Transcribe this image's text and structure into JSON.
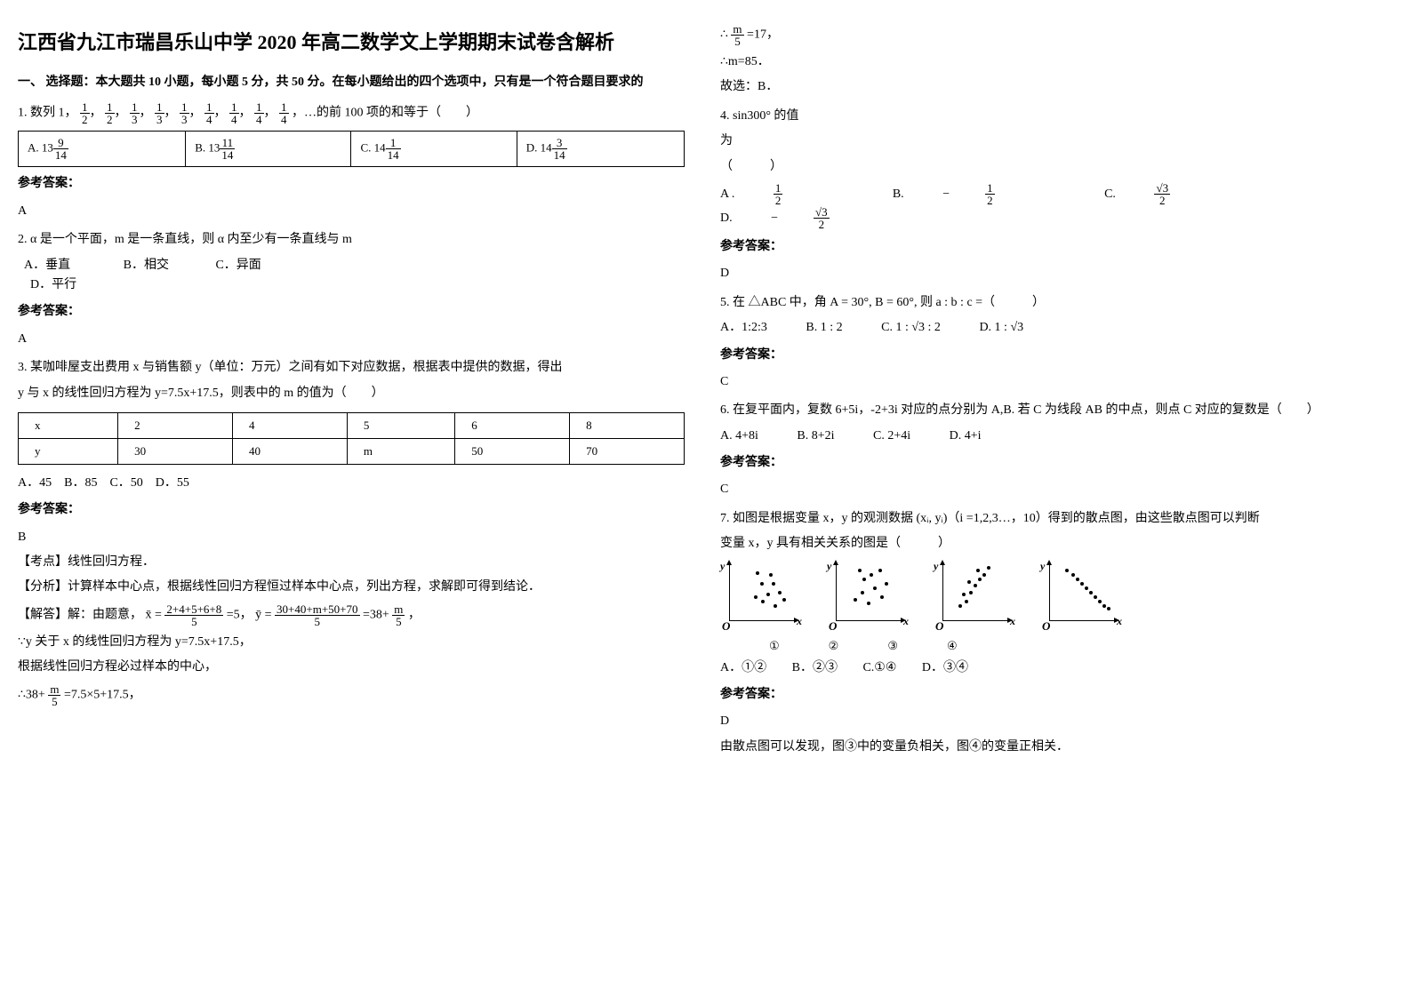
{
  "title": "江西省九江市瑞昌乐山中学 2020 年高二数学文上学期期末试卷含解析",
  "section1": "一、 选择题：本大题共 10 小题，每小题 5 分，共 50 分。在每小题给出的四个选项中，只有是一个符合题目要求的",
  "q1": {
    "stem": "1. 数列 1，",
    "tail": "，…的前 100 项的和等于（　　）",
    "seq": [
      "1",
      "2",
      "1",
      "2",
      "1",
      "3",
      "1",
      "3",
      "1",
      "3",
      "1",
      "4",
      "1",
      "4",
      "1",
      "4",
      "1",
      "4"
    ],
    "opts": {
      "A_pre": "A.",
      "A_int": "13",
      "A_num": "9",
      "A_den": "14",
      "B_pre": "B.",
      "B_int": "13",
      "B_num": "11",
      "B_den": "14",
      "C_pre": "C.",
      "C_int": "14",
      "C_num": "1",
      "C_den": "14",
      "D_pre": "D.",
      "D_int": "14",
      "D_num": "3",
      "D_den": "14"
    },
    "answer_label": "参考答案：",
    "answer": "A"
  },
  "q2": {
    "stem": "2. α 是一个平面，m 是一条直线，则 α 内至少有一条直线与 m",
    "optA": "A．垂直",
    "optB": "B．相交",
    "optC": "C．异面",
    "optD": "D．平行",
    "answer_label": "参考答案：",
    "answer": "A"
  },
  "q3": {
    "stem1": "3. 某咖啡屋支出费用 x 与销售额 y（单位：万元）之间有如下对应数据，根据表中提供的数据，得出",
    "stem2": "y 与 x 的线性回归方程为 y=7.5x+17.5，则表中的 m 的值为（　　）",
    "table": {
      "r1": [
        "x",
        "2",
        "4",
        "5",
        "6",
        "8"
      ],
      "r2": [
        "y",
        "30",
        "40",
        "m",
        "50",
        "70"
      ]
    },
    "opts": "A．45　B．85　C．50　D．55",
    "answer_label": "参考答案：",
    "answer": "B",
    "kaodian_lbl": "【考点】",
    "kaodian": "线性回归方程．",
    "fenxi_lbl": "【分析】",
    "fenxi": "计算样本中心点，根据线性回归方程恒过样本中心点，列出方程，求解即可得到结论．",
    "jieda_lbl": "【解答】",
    "jieda_pre": "解：由题意，",
    "xbar_eq": "x̄ =",
    "xbar_num": "2+4+5+6+8",
    "xbar_den": "5",
    "xbar_val": "=5，",
    "ybar_eq": "ȳ =",
    "ybar_num": "30+40+m+50+70",
    "ybar_den": "5",
    "ybar_val_pre": "=38+",
    "ybar_m_num": "m",
    "ybar_m_den": "5",
    "ybar_tail": "，",
    "line1": "∵y 关于 x 的线性回归方程为 y=7.5x+17.5，",
    "line2": "根据线性回归方程必过样本的中心，",
    "line3_pre": "∴38+",
    "line3_num": "m",
    "line3_den": "5",
    "line3_tail": "=7.5×5+17.5，"
  },
  "right": {
    "l1_pre": "∴",
    "l1_num": "m",
    "l1_den": "5",
    "l1_tail": "=17，",
    "l2": "∴m=85．",
    "l3": "故选：B．",
    "q4_stem1": "4. sin300° 的值",
    "q4_stem2": "为",
    "q4_paren": "（　　　）",
    "q4_A": "A .",
    "q4_A_num": "1",
    "q4_A_den": "2",
    "q4_B": "B.",
    "q4_B_neg": "−",
    "q4_B_num": "1",
    "q4_B_den": "2",
    "q4_C": "C.",
    "q4_C_num": "√3",
    "q4_C_den": "2",
    "q4_D": "D.",
    "q4_D_neg": "−",
    "q4_D_num": "√3",
    "q4_D_den": "2",
    "q4_answer_label": "参考答案：",
    "q4_answer": "D",
    "q5_stem": "5. 在 △ABC 中，角 A = 30°, B = 60°, 则 a : b : c =（　　　）",
    "q5_A": "A．1:2:3",
    "q5_B": "B. 1 : 2",
    "q5_C": "C. 1 : √3 : 2",
    "q5_D": "D. 1 : √3",
    "q5_answer_label": "参考答案：",
    "q5_answer": "C",
    "q6_stem": "6. 在复平面内，复数 6+5i，-2+3i 对应的点分别为 A,B. 若 C 为线段 AB 的中点，则点 C 对应的复数是（　　）",
    "q6_A": "A. 4+8i",
    "q6_B": "B. 8+2i",
    "q6_C": "C. 2+4i",
    "q6_D": "D. 4+i",
    "q6_answer_label": "参考答案：",
    "q6_answer": "C",
    "q7_stem1": "7. 如图是根据变量 x，y 的观测数据 (xᵢ, yᵢ)（i =1,2,3…，10）得到的散点图，由这些散点图可以判断",
    "q7_stem2": "变量 x，y 具有相关关系的图是（　　　）",
    "q7_labels": {
      "n1": "①",
      "n2": "②",
      "n3": "③",
      "n4": "④"
    },
    "q7_A": "A．①②",
    "q7_B": "B．②③",
    "q7_C": "C.①④",
    "q7_D": "D．③④",
    "q7_answer_label": "参考答案：",
    "q7_answer": "D",
    "q7_concl": "由散点图可以发现，图③中的变量负相关，图④的变量正相关．",
    "scatter": {
      "plot1": [
        [
          28,
          25
        ],
        [
          36,
          20
        ],
        [
          42,
          28
        ],
        [
          50,
          15
        ],
        [
          35,
          40
        ],
        [
          48,
          40
        ],
        [
          30,
          52
        ],
        [
          55,
          30
        ],
        [
          45,
          50
        ],
        [
          60,
          22
        ]
      ],
      "plot2": [
        [
          20,
          22
        ],
        [
          28,
          30
        ],
        [
          35,
          18
        ],
        [
          42,
          35
        ],
        [
          30,
          45
        ],
        [
          50,
          25
        ],
        [
          38,
          50
        ],
        [
          55,
          40
        ],
        [
          48,
          55
        ],
        [
          25,
          55
        ]
      ],
      "plot3": [
        [
          18,
          15
        ],
        [
          25,
          20
        ],
        [
          22,
          28
        ],
        [
          30,
          30
        ],
        [
          35,
          38
        ],
        [
          28,
          42
        ],
        [
          40,
          45
        ],
        [
          45,
          50
        ],
        [
          38,
          55
        ],
        [
          50,
          58
        ]
      ],
      "plot4": [
        [
          18,
          55
        ],
        [
          25,
          50
        ],
        [
          30,
          45
        ],
        [
          35,
          40
        ],
        [
          40,
          35
        ],
        [
          45,
          30
        ],
        [
          50,
          25
        ],
        [
          55,
          20
        ],
        [
          60,
          15
        ],
        [
          65,
          12
        ]
      ],
      "axis_y": "y",
      "axis_x": "x",
      "axis_o": "O"
    }
  }
}
